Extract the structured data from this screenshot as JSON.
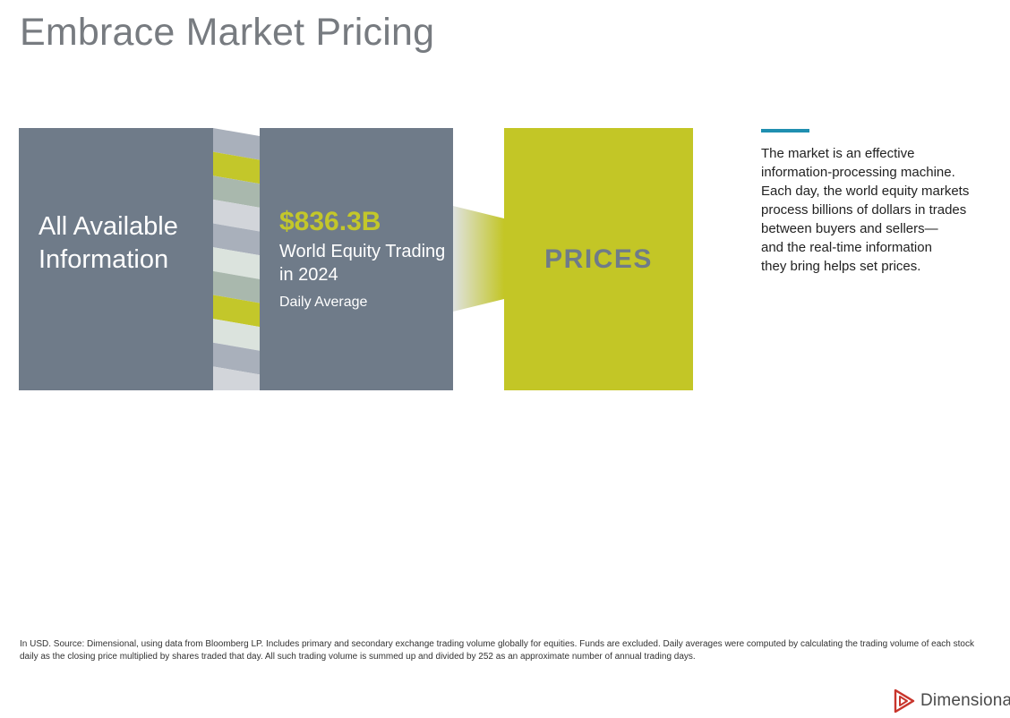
{
  "title": "Embrace Market Pricing",
  "colors": {
    "box_gray": "#6f7b89",
    "accent_green": "#c3c626",
    "accent_blue": "#1f8fb0",
    "strip_colors": [
      "#a9b0bb",
      "#c3c72a",
      "#a9b8ad",
      "#d2d5da",
      "#a9b0bb",
      "#dbe3dd",
      "#a9b8ad",
      "#c3c72a",
      "#dbe3dd",
      "#a9b0bb",
      "#d2d5da"
    ]
  },
  "info_box": {
    "label": "All Available Information"
  },
  "trading_box": {
    "amount": "$836.3B",
    "label": "World Equity Trading in 2024",
    "sublabel": "Daily Average"
  },
  "prices_box": {
    "label": "PRICES"
  },
  "description": {
    "lines": [
      "The market is an effective",
      "information-processing machine.",
      "Each day, the world equity markets",
      "process billions of dollars in trades",
      "between buyers and sellers—",
      "and the real-time information",
      "they bring helps set prices."
    ]
  },
  "footnote": "In USD. Source: Dimensional, using data from Bloomberg LP. Includes primary and secondary exchange trading volume globally for equities. Funds are excluded. Daily averages were computed by calculating the trading volume of each stock daily as the closing price multiplied by shares traded that day. All such trading volume is summed up and divided by 252 as an approximate number of annual trading days.",
  "logo": {
    "text": "Dimensional",
    "icon": "dimensional-logo-icon"
  }
}
